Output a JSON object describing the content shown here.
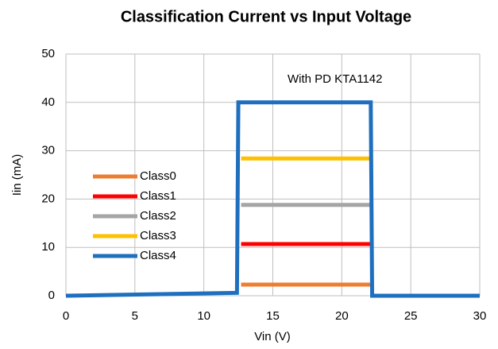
{
  "chart_data": {
    "type": "line",
    "title": "Classification Current vs Input Voltage",
    "x_label": "Vin (V)",
    "y_label": "Iin (mA)",
    "annotation": "With PD KTA1142",
    "xlim": [
      0,
      30
    ],
    "xticks": [
      0,
      5,
      10,
      15,
      20,
      25,
      30
    ],
    "ylim": [
      0,
      50
    ],
    "yticks": [
      0,
      10,
      20,
      30,
      40,
      50
    ],
    "grid": true,
    "legend": "left",
    "series": [
      {
        "name": "Class0",
        "color": "#ed7d31",
        "x": [
          12.7,
          22.1
        ],
        "values": [
          2.3,
          2.3
        ]
      },
      {
        "name": "Class1",
        "color": "#ff0000",
        "x": [
          12.7,
          22.1
        ],
        "values": [
          10.7,
          10.7
        ]
      },
      {
        "name": "Class2",
        "color": "#a5a5a5",
        "x": [
          12.7,
          22.1
        ],
        "values": [
          18.8,
          18.8
        ]
      },
      {
        "name": "Class3",
        "color": "#ffc000",
        "x": [
          12.7,
          22.1
        ],
        "values": [
          28.4,
          28.4
        ]
      },
      {
        "name": "Class4",
        "color": "#1f6fbf",
        "x": [
          0,
          12.4,
          12.5,
          22.1,
          22.2,
          30
        ],
        "values": [
          0,
          0.6,
          40,
          40,
          0,
          0
        ]
      }
    ]
  }
}
